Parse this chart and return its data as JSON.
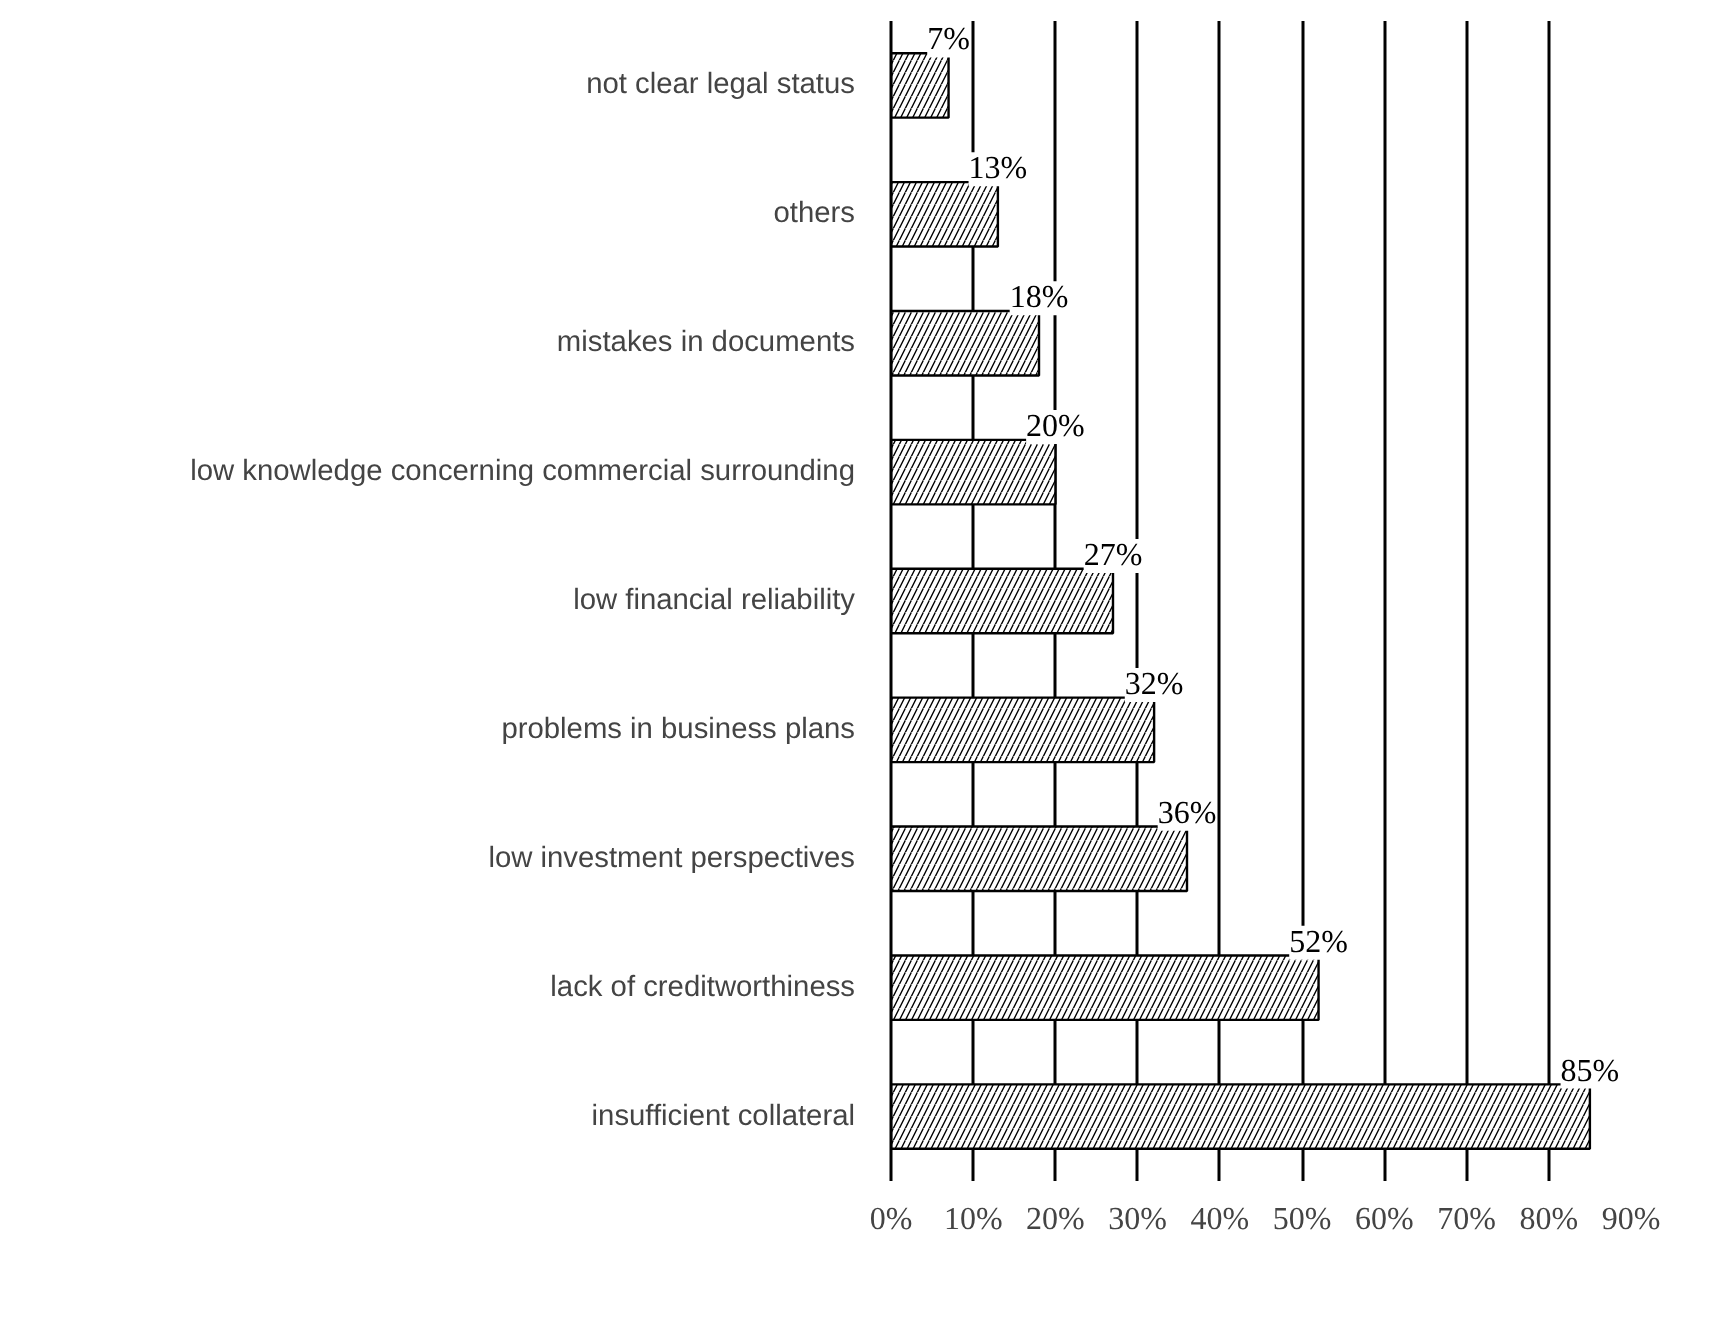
{
  "chart_data": {
    "type": "bar",
    "orientation": "horizontal",
    "categories": [
      "not clear legal status",
      "others",
      "mistakes in documents",
      "low knowledge concerning commercial surrounding",
      "low financial reliability",
      "problems in business plans",
      "low investment perspectives",
      "lack of creditworthiness",
      "insufficient collateral"
    ],
    "values": [
      7,
      13,
      18,
      20,
      27,
      32,
      36,
      52,
      85
    ],
    "color": "#000000",
    "data_labels": true,
    "value_labels": [
      "7%",
      "13%",
      "18%",
      "20%",
      "27%",
      "32%",
      "36%",
      "52%",
      "85%"
    ],
    "xlim": [
      0,
      90
    ],
    "xticks": [
      {
        "value": 0,
        "label": "0%"
      },
      {
        "value": 10,
        "label": "10%"
      },
      {
        "value": 20,
        "label": "20%"
      },
      {
        "value": 30,
        "label": "30%"
      },
      {
        "value": 40,
        "label": "40%"
      },
      {
        "value": 50,
        "label": "50%"
      },
      {
        "value": 60,
        "label": "60%"
      },
      {
        "value": 70,
        "label": "70%"
      },
      {
        "value": 80,
        "label": "80%"
      },
      {
        "value": 90,
        "label": "90%"
      }
    ],
    "grid": "x"
  }
}
